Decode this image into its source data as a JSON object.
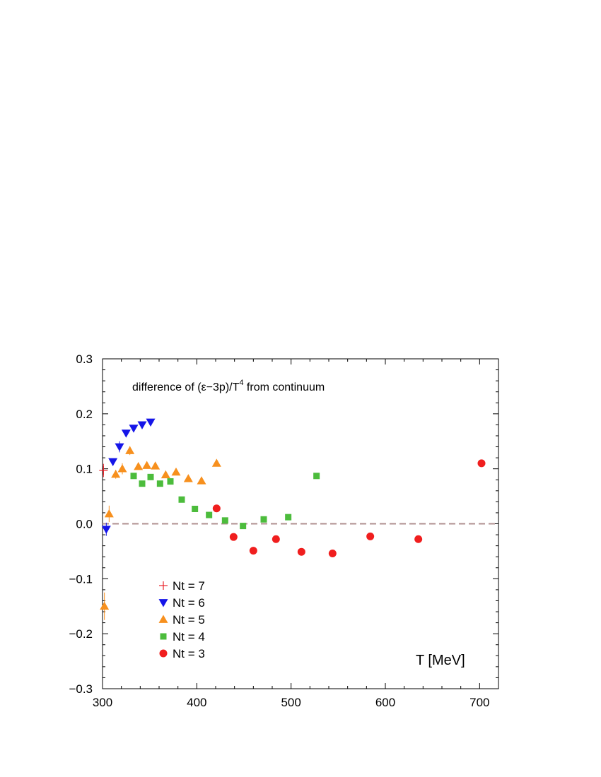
{
  "chart_data": {
    "type": "scatter",
    "title": "",
    "annotation": {
      "prefix": "difference of (ε−3p)/T",
      "superscript": "4",
      "suffix": " from continuum"
    },
    "xlabel": "T [MeV]",
    "ylabel": "",
    "xlim": [
      300,
      720
    ],
    "ylim": [
      -0.3,
      0.3
    ],
    "xticks": [
      300,
      400,
      500,
      600,
      700
    ],
    "yticks": [
      -0.3,
      -0.2,
      -0.1,
      0.0,
      0.1,
      0.2,
      0.3
    ],
    "xtick_labels": [
      "300",
      "400",
      "500",
      "600",
      "700"
    ],
    "ytick_labels": [
      "−0.3",
      "−0.2",
      "−0.1",
      "0.0",
      "0.1",
      "0.2",
      "0.3"
    ],
    "reference_line": {
      "y": 0.0,
      "style": "dashed",
      "color": "#b09090"
    },
    "legend_position": "lower-left",
    "grid": false,
    "series": [
      {
        "name": "Nt = 7",
        "marker": "plus",
        "color": "#e8232a",
        "points": [
          {
            "x": 301,
            "y": 0.097,
            "err": 0.012
          }
        ]
      },
      {
        "name": "Nt = 6",
        "marker": "triangle-down",
        "color": "#1515e8",
        "points": [
          {
            "x": 304,
            "y": -0.01,
            "err": 0.012
          },
          {
            "x": 311,
            "y": 0.113,
            "err": 0.0
          },
          {
            "x": 318,
            "y": 0.14,
            "err": 0.01
          },
          {
            "x": 325,
            "y": 0.165,
            "err": 0.0
          },
          {
            "x": 333,
            "y": 0.174,
            "err": 0.0
          },
          {
            "x": 342,
            "y": 0.18,
            "err": 0.0
          },
          {
            "x": 351,
            "y": 0.185,
            "err": 0.0
          }
        ]
      },
      {
        "name": "Nt = 5",
        "marker": "triangle-up",
        "color": "#f7901e",
        "points": [
          {
            "x": 302,
            "y": -0.15,
            "err": 0.025
          },
          {
            "x": 307,
            "y": 0.018,
            "err": 0.015
          },
          {
            "x": 314,
            "y": 0.09,
            "err": 0.008
          },
          {
            "x": 321,
            "y": 0.1,
            "err": 0.01
          },
          {
            "x": 329,
            "y": 0.133,
            "err": 0.008
          },
          {
            "x": 338,
            "y": 0.104,
            "err": 0.0
          },
          {
            "x": 347,
            "y": 0.106,
            "err": 0.0
          },
          {
            "x": 356,
            "y": 0.105,
            "err": 0.0
          },
          {
            "x": 367,
            "y": 0.089,
            "err": 0.0
          },
          {
            "x": 378,
            "y": 0.094,
            "err": 0.0
          },
          {
            "x": 391,
            "y": 0.082,
            "err": 0.0
          },
          {
            "x": 405,
            "y": 0.078,
            "err": 0.0
          },
          {
            "x": 421,
            "y": 0.11,
            "err": 0.0
          }
        ]
      },
      {
        "name": "Nt = 4",
        "marker": "square",
        "color": "#4cbc3c",
        "points": [
          {
            "x": 333,
            "y": 0.087,
            "err": 0.005
          },
          {
            "x": 342,
            "y": 0.073,
            "err": 0.005
          },
          {
            "x": 351,
            "y": 0.085,
            "err": 0.0
          },
          {
            "x": 361,
            "y": 0.073,
            "err": 0.005
          },
          {
            "x": 372,
            "y": 0.077,
            "err": 0.0
          },
          {
            "x": 384,
            "y": 0.044,
            "err": 0.0
          },
          {
            "x": 398,
            "y": 0.027,
            "err": 0.0
          },
          {
            "x": 413,
            "y": 0.016,
            "err": 0.0
          },
          {
            "x": 430,
            "y": 0.006,
            "err": 0.0
          },
          {
            "x": 449,
            "y": -0.004,
            "err": 0.0
          },
          {
            "x": 471,
            "y": 0.008,
            "err": 0.0
          },
          {
            "x": 497,
            "y": 0.012,
            "err": 0.0
          },
          {
            "x": 527,
            "y": 0.087,
            "err": 0.0
          }
        ]
      },
      {
        "name": "Nt = 3",
        "marker": "circle",
        "color": "#f01e1e",
        "points": [
          {
            "x": 421,
            "y": 0.028,
            "err": 0.0
          },
          {
            "x": 439,
            "y": -0.024,
            "err": 0.0
          },
          {
            "x": 460,
            "y": -0.049,
            "err": 0.0
          },
          {
            "x": 484,
            "y": -0.028,
            "err": 0.0
          },
          {
            "x": 511,
            "y": -0.051,
            "err": 0.0
          },
          {
            "x": 544,
            "y": -0.054,
            "err": 0.0
          },
          {
            "x": 584,
            "y": -0.023,
            "err": 0.0
          },
          {
            "x": 635,
            "y": -0.028,
            "err": 0.0
          },
          {
            "x": 702,
            "y": 0.11,
            "err": 0.0
          }
        ]
      }
    ],
    "legend_order": [
      0,
      1,
      2,
      3,
      4
    ]
  }
}
